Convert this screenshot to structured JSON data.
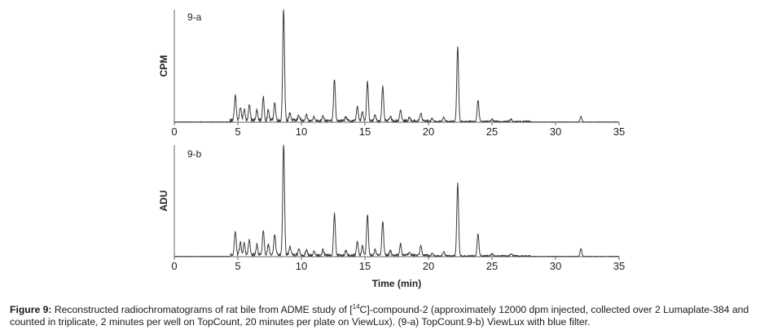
{
  "caption": {
    "label": "Figure 9:",
    "text_before_sup": " Reconstructed radiochromatograms of rat bile from ADME study of [",
    "sup": "14",
    "text_after_sup": "C]-compound-2 (approximately 12000 dpm injected, collected over 2 Lumaplate-384 and counted in triplicate, 2 minutes per well on TopCount, 20 minutes per plate on ViewLux). (9-a) TopCount.9-b) ViewLux with blue filter."
  },
  "chart_data": [
    {
      "type": "line",
      "panel_label": "9-a",
      "ylabel": "CPM",
      "xlabel": "",
      "xlim": [
        0,
        35
      ],
      "x_ticks": [
        0,
        5,
        10,
        15,
        20,
        25,
        30,
        35
      ],
      "ylim": [
        0,
        100
      ],
      "grid": false,
      "baseline_noise_start": 4.4,
      "baseline_noise_end": 28,
      "series": [
        {
          "peaks": [
            {
              "x": 4.8,
              "y": 22
            },
            {
              "x": 5.2,
              "y": 12
            },
            {
              "x": 5.5,
              "y": 10
            },
            {
              "x": 5.9,
              "y": 15
            },
            {
              "x": 6.5,
              "y": 9
            },
            {
              "x": 7.0,
              "y": 20
            },
            {
              "x": 7.4,
              "y": 9
            },
            {
              "x": 7.9,
              "y": 16
            },
            {
              "x": 8.6,
              "y": 100
            },
            {
              "x": 9.1,
              "y": 7
            },
            {
              "x": 9.8,
              "y": 5
            },
            {
              "x": 10.4,
              "y": 5
            },
            {
              "x": 11.0,
              "y": 4
            },
            {
              "x": 11.7,
              "y": 5
            },
            {
              "x": 12.6,
              "y": 37
            },
            {
              "x": 13.5,
              "y": 4
            },
            {
              "x": 14.4,
              "y": 13
            },
            {
              "x": 14.8,
              "y": 8
            },
            {
              "x": 15.2,
              "y": 35
            },
            {
              "x": 15.8,
              "y": 5
            },
            {
              "x": 16.4,
              "y": 30
            },
            {
              "x": 17.0,
              "y": 4
            },
            {
              "x": 17.8,
              "y": 10
            },
            {
              "x": 18.5,
              "y": 3
            },
            {
              "x": 19.4,
              "y": 7
            },
            {
              "x": 20.3,
              "y": 3
            },
            {
              "x": 21.2,
              "y": 4
            },
            {
              "x": 22.3,
              "y": 67
            },
            {
              "x": 23.9,
              "y": 19
            },
            {
              "x": 25.0,
              "y": 2
            },
            {
              "x": 26.5,
              "y": 2
            },
            {
              "x": 32.0,
              "y": 5
            }
          ]
        }
      ]
    },
    {
      "type": "line",
      "panel_label": "9-b",
      "ylabel": "ADU",
      "xlabel": "Time (min)",
      "xlim": [
        0,
        35
      ],
      "x_ticks": [
        0,
        5,
        10,
        15,
        20,
        25,
        30,
        35
      ],
      "ylim": [
        0,
        100
      ],
      "grid": false,
      "baseline_noise_start": 4.4,
      "baseline_noise_end": 28,
      "series": [
        {
          "peaks": [
            {
              "x": 4.8,
              "y": 22
            },
            {
              "x": 5.2,
              "y": 11
            },
            {
              "x": 5.5,
              "y": 10
            },
            {
              "x": 5.9,
              "y": 14
            },
            {
              "x": 6.5,
              "y": 9
            },
            {
              "x": 7.0,
              "y": 22
            },
            {
              "x": 7.4,
              "y": 9
            },
            {
              "x": 7.9,
              "y": 18
            },
            {
              "x": 8.6,
              "y": 100
            },
            {
              "x": 9.1,
              "y": 7
            },
            {
              "x": 9.8,
              "y": 5
            },
            {
              "x": 10.4,
              "y": 5
            },
            {
              "x": 11.0,
              "y": 4
            },
            {
              "x": 11.7,
              "y": 5
            },
            {
              "x": 12.6,
              "y": 37
            },
            {
              "x": 13.5,
              "y": 4
            },
            {
              "x": 14.4,
              "y": 13
            },
            {
              "x": 14.8,
              "y": 8
            },
            {
              "x": 15.2,
              "y": 37
            },
            {
              "x": 15.8,
              "y": 5
            },
            {
              "x": 16.4,
              "y": 31
            },
            {
              "x": 17.0,
              "y": 4
            },
            {
              "x": 17.8,
              "y": 10
            },
            {
              "x": 18.5,
              "y": 3
            },
            {
              "x": 19.4,
              "y": 9
            },
            {
              "x": 20.3,
              "y": 3
            },
            {
              "x": 21.2,
              "y": 4
            },
            {
              "x": 22.3,
              "y": 65
            },
            {
              "x": 23.9,
              "y": 20
            },
            {
              "x": 25.0,
              "y": 2
            },
            {
              "x": 26.5,
              "y": 2
            },
            {
              "x": 32.0,
              "y": 7
            }
          ]
        }
      ]
    }
  ]
}
